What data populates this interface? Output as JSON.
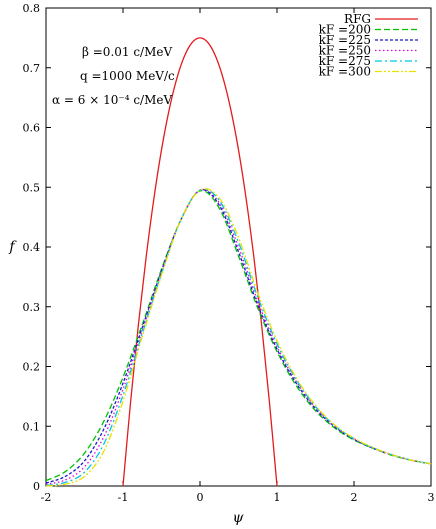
{
  "chart_data": {
    "type": "line",
    "xlabel": "ψ",
    "ylabel": "f",
    "xlim": [
      -2,
      3
    ],
    "ylim": [
      0,
      0.8
    ],
    "xticks": [
      "-2",
      "-1",
      "0",
      "1",
      "2",
      "3"
    ],
    "yticks": [
      "0",
      "0.1",
      "0.2",
      "0.3",
      "0.4",
      "0.5",
      "0.6",
      "0.7",
      "0.8"
    ],
    "grid": false,
    "legend_position": "top-right",
    "annotations": [
      "β =0.01 c/MeV",
      "q =1000 MeV/c",
      "α = 6 × 10⁻⁴ c/MeV"
    ],
    "series": [
      {
        "name": "RFG",
        "color": "#e41a1c",
        "dash": "solid",
        "x": [
          -1.0,
          -0.9,
          -0.8,
          -0.7,
          -0.6,
          -0.5,
          -0.4,
          -0.3,
          -0.2,
          -0.1,
          0.0,
          0.1,
          0.2,
          0.3,
          0.4,
          0.5,
          0.6,
          0.7,
          0.8,
          0.9,
          1.0
        ],
        "y": [
          0.0,
          0.1425,
          0.27,
          0.3825,
          0.48,
          0.5625,
          0.63,
          0.6825,
          0.72,
          0.7425,
          0.75,
          0.7425,
          0.72,
          0.6825,
          0.63,
          0.5625,
          0.48,
          0.3825,
          0.27,
          0.1425,
          0.0
        ]
      },
      {
        "name": "kF =200",
        "color": "#00c000",
        "dash": "dashed",
        "x": [
          -2.0,
          -1.75,
          -1.5,
          -1.25,
          -1.0,
          -0.75,
          -0.5,
          -0.25,
          0.0,
          0.25,
          0.5,
          0.75,
          1.0,
          1.25,
          1.5,
          1.75,
          2.0,
          2.25,
          2.5,
          2.75,
          3.0
        ],
        "y": [
          0.009,
          0.024,
          0.055,
          0.108,
          0.182,
          0.27,
          0.363,
          0.445,
          0.494,
          0.465,
          0.385,
          0.298,
          0.225,
          0.168,
          0.126,
          0.097,
          0.077,
          0.063,
          0.051,
          0.043,
          0.037
        ]
      },
      {
        "name": "kF =225",
        "color": "#1a1ac8",
        "dash": "short-dash",
        "x": [
          -2.0,
          -1.75,
          -1.5,
          -1.25,
          -1.0,
          -0.75,
          -0.5,
          -0.25,
          0.0,
          0.25,
          0.5,
          0.75,
          1.0,
          1.25,
          1.5,
          1.75,
          2.0,
          2.25,
          2.5,
          2.75,
          3.0
        ],
        "y": [
          0.005,
          0.016,
          0.042,
          0.095,
          0.172,
          0.265,
          0.36,
          0.445,
          0.495,
          0.47,
          0.392,
          0.303,
          0.229,
          0.172,
          0.129,
          0.099,
          0.078,
          0.063,
          0.052,
          0.043,
          0.037
        ]
      },
      {
        "name": "kF =250",
        "color": "#e000e0",
        "dash": "dotted",
        "x": [
          -2.0,
          -1.75,
          -1.5,
          -1.25,
          -1.0,
          -0.75,
          -0.5,
          -0.25,
          0.0,
          0.25,
          0.5,
          0.75,
          1.0,
          1.25,
          1.5,
          1.75,
          2.0,
          2.25,
          2.5,
          2.75,
          3.0
        ],
        "y": [
          0.003,
          0.01,
          0.032,
          0.082,
          0.162,
          0.26,
          0.357,
          0.445,
          0.495,
          0.474,
          0.4,
          0.309,
          0.233,
          0.175,
          0.131,
          0.1,
          0.079,
          0.064,
          0.052,
          0.043,
          0.037
        ]
      },
      {
        "name": "kF =275",
        "color": "#00c8e0",
        "dash": "dash-dot",
        "x": [
          -2.0,
          -1.75,
          -1.5,
          -1.25,
          -1.0,
          -0.75,
          -0.5,
          -0.25,
          0.0,
          0.25,
          0.5,
          0.75,
          1.0,
          1.25,
          1.5,
          1.75,
          2.0,
          2.25,
          2.5,
          2.75,
          3.0
        ],
        "y": [
          0.001,
          0.006,
          0.023,
          0.07,
          0.152,
          0.255,
          0.355,
          0.445,
          0.495,
          0.478,
          0.408,
          0.316,
          0.238,
          0.178,
          0.133,
          0.101,
          0.079,
          0.064,
          0.052,
          0.043,
          0.037
        ]
      },
      {
        "name": "kF =300",
        "color": "#e8e000",
        "dash": "dash-dot-dot",
        "x": [
          -2.0,
          -1.75,
          -1.5,
          -1.25,
          -1.0,
          -0.75,
          -0.5,
          -0.25,
          0.0,
          0.25,
          0.5,
          0.75,
          1.0,
          1.25,
          1.5,
          1.75,
          2.0,
          2.25,
          2.5,
          2.75,
          3.0
        ],
        "y": [
          0.0,
          0.003,
          0.016,
          0.058,
          0.142,
          0.25,
          0.353,
          0.445,
          0.495,
          0.482,
          0.416,
          0.323,
          0.243,
          0.181,
          0.135,
          0.102,
          0.08,
          0.064,
          0.052,
          0.043,
          0.037
        ]
      }
    ]
  }
}
